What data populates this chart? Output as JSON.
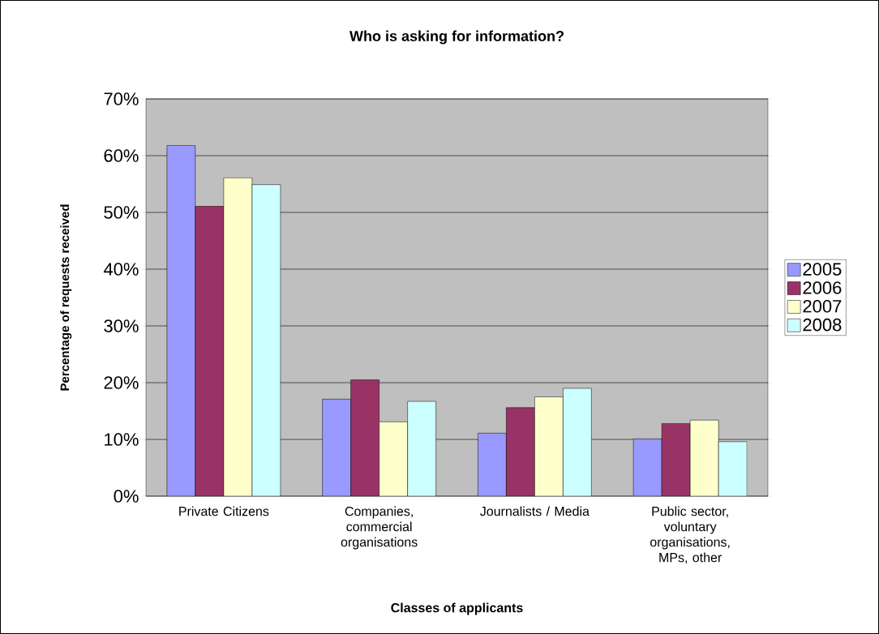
{
  "chart_data": {
    "type": "bar",
    "title": "Who is asking for information?",
    "xlabel": "Classes of applicants",
    "ylabel": "Percentage of requests received",
    "categories": [
      "Private Citizens",
      "Companies, commercial organisations",
      "Journalists / Media",
      "Public sector, voluntary organisations, MPs, other"
    ],
    "series": [
      {
        "name": "2005",
        "color": "#9999ff",
        "values": [
          61.8,
          17.1,
          11.1,
          10.1
        ]
      },
      {
        "name": "2006",
        "color": "#993366",
        "values": [
          51.1,
          20.5,
          15.6,
          12.8
        ]
      },
      {
        "name": "2007",
        "color": "#ffffcc",
        "values": [
          56.1,
          13.1,
          17.5,
          13.4
        ]
      },
      {
        "name": "2008",
        "color": "#ccffff",
        "values": [
          54.9,
          16.7,
          19.0,
          9.6
        ]
      }
    ],
    "ylim": [
      0,
      70
    ],
    "yticks": [
      {
        "value": 0,
        "label": "0%"
      },
      {
        "value": 10,
        "label": "10%"
      },
      {
        "value": 20,
        "label": "20%"
      },
      {
        "value": 30,
        "label": "30%"
      },
      {
        "value": 40,
        "label": "40%"
      },
      {
        "value": 50,
        "label": "50%"
      },
      {
        "value": 60,
        "label": "60%"
      },
      {
        "value": 70,
        "label": "70%"
      }
    ],
    "grid": "y",
    "legend": "right"
  }
}
